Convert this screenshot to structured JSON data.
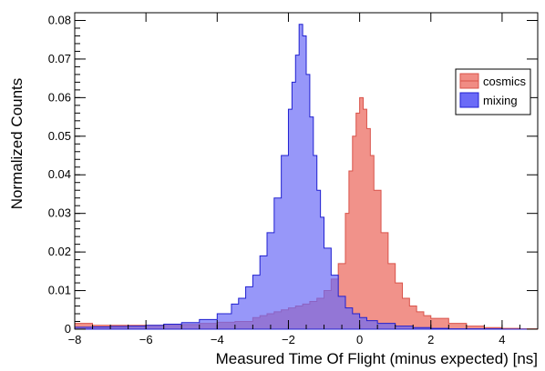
{
  "chart_data": {
    "type": "area",
    "title": "",
    "xlabel": "Measured Time Of Flight (minus expected) [ns]",
    "ylabel": "Normalized Counts",
    "xlim": [
      -8,
      5
    ],
    "ylim": [
      0,
      0.082
    ],
    "x_ticks": [
      -8,
      -6,
      -4,
      -2,
      0,
      2,
      4
    ],
    "x_tick_labels": [
      "−8",
      "−6",
      "−4",
      "−2",
      "0",
      "2",
      "4"
    ],
    "y_ticks": [
      0,
      0.01,
      0.02,
      0.03,
      0.04,
      0.05,
      0.06,
      0.07,
      0.08
    ],
    "y_tick_labels": [
      "0",
      "0.01",
      "0.02",
      "0.03",
      "0.04",
      "0.05",
      "0.06",
      "0.07",
      "0.08"
    ],
    "grid": false,
    "legend_position": "top-right",
    "series": [
      {
        "name": "cosmics",
        "color": "#f08c84",
        "line_color": "#d9534a",
        "x": [
          -8.0,
          -7.5,
          -7.0,
          -6.5,
          -6.0,
          -5.5,
          -5.0,
          -4.5,
          -4.0,
          -3.5,
          -3.0,
          -2.8,
          -2.6,
          -2.4,
          -2.2,
          -2.0,
          -1.8,
          -1.6,
          -1.4,
          -1.2,
          -1.0,
          -0.8,
          -0.6,
          -0.4,
          -0.3,
          -0.2,
          -0.1,
          0.0,
          0.1,
          0.2,
          0.3,
          0.4,
          0.6,
          0.8,
          1.0,
          1.2,
          1.4,
          1.6,
          1.8,
          2.0,
          2.5,
          3.0,
          3.5,
          4.0,
          4.5,
          5.0
        ],
        "y": [
          0.0015,
          0.001,
          0.001,
          0.001,
          0.001,
          0.001,
          0.0012,
          0.0015,
          0.0018,
          0.002,
          0.003,
          0.0035,
          0.004,
          0.0045,
          0.005,
          0.0055,
          0.006,
          0.0065,
          0.0072,
          0.008,
          0.01,
          0.013,
          0.017,
          0.03,
          0.041,
          0.05,
          0.056,
          0.06,
          0.057,
          0.052,
          0.045,
          0.036,
          0.025,
          0.017,
          0.012,
          0.008,
          0.006,
          0.0045,
          0.0035,
          0.0028,
          0.0015,
          0.0008,
          0.0004,
          0.0002,
          0.0001,
          0.0
        ]
      },
      {
        "name": "mixing",
        "color": "#6b6bf7",
        "line_color": "#2020d0",
        "x": [
          -8.0,
          -7.5,
          -7.0,
          -6.5,
          -6.0,
          -5.5,
          -5.0,
          -4.5,
          -4.0,
          -3.6,
          -3.4,
          -3.2,
          -3.0,
          -2.8,
          -2.6,
          -2.4,
          -2.2,
          -2.0,
          -1.9,
          -1.8,
          -1.7,
          -1.6,
          -1.5,
          -1.4,
          -1.3,
          -1.2,
          -1.1,
          -1.0,
          -0.8,
          -0.6,
          -0.4,
          -0.2,
          0.0,
          0.2,
          0.5,
          1.0,
          1.5,
          2.0,
          2.5,
          3.0,
          4.0,
          5.0
        ],
        "y": [
          0.0005,
          0.0006,
          0.0007,
          0.0008,
          0.001,
          0.0013,
          0.0017,
          0.0025,
          0.004,
          0.0065,
          0.008,
          0.011,
          0.014,
          0.019,
          0.025,
          0.034,
          0.045,
          0.057,
          0.064,
          0.071,
          0.079,
          0.076,
          0.066,
          0.055,
          0.045,
          0.036,
          0.029,
          0.021,
          0.014,
          0.0085,
          0.0055,
          0.004,
          0.003,
          0.0022,
          0.0015,
          0.0008,
          0.0004,
          0.0002,
          0.0001,
          0.0001,
          0.0,
          0.0
        ]
      }
    ]
  }
}
